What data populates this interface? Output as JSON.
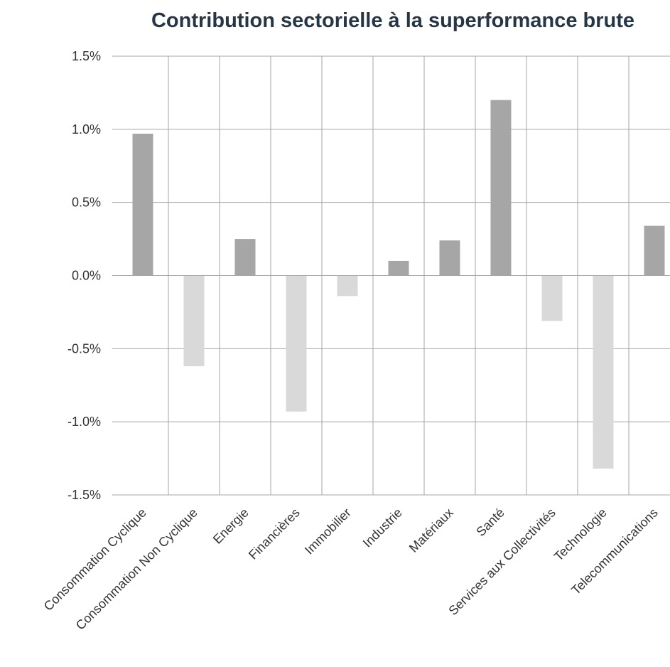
{
  "chart_data": {
    "type": "bar",
    "title": "Contribution sectorielle à la superformance brute",
    "categories": [
      "Consommation Cyclique",
      "Consommation Non Cyclique",
      "Energie",
      "Financières",
      "Immobilier",
      "Industrie",
      "Matériaux",
      "Santé",
      "Services aux Collectivités",
      "Technologie",
      "Telecommunications"
    ],
    "values": [
      0.97,
      -0.62,
      0.25,
      -0.93,
      -0.14,
      0.1,
      0.24,
      1.2,
      -0.31,
      -1.32,
      0.34
    ],
    "colors": [
      "#a6a6a6",
      "#d9d9d9",
      "#a6a6a6",
      "#d9d9d9",
      "#d9d9d9",
      "#a6a6a6",
      "#a6a6a6",
      "#a6a6a6",
      "#d9d9d9",
      "#d9d9d9",
      "#a6a6a6"
    ],
    "ylim": [
      -1.5,
      1.5
    ],
    "yticks": [
      {
        "value": -1.5,
        "label": "-1.5%"
      },
      {
        "value": -1.0,
        "label": "-1.0%"
      },
      {
        "value": -0.5,
        "label": "-0.5%"
      },
      {
        "value": 0.0,
        "label": "0.0%"
      },
      {
        "value": 0.5,
        "label": "0.5%"
      },
      {
        "value": 1.0,
        "label": "1.0%"
      },
      {
        "value": 1.5,
        "label": "1.5%"
      }
    ],
    "grid": true
  }
}
